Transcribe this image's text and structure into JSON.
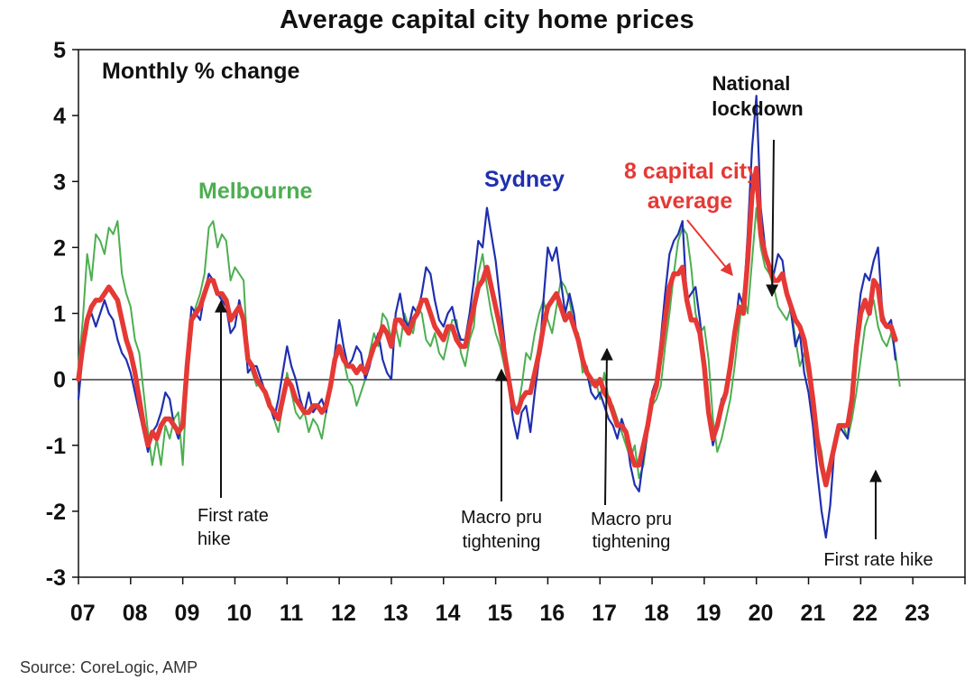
{
  "chart_data": {
    "type": "line",
    "title": "Average capital city home prices",
    "subtitle": "Monthly % change",
    "source": "Source: CoreLogic, AMP",
    "x_start_year": 2007,
    "x_tick_labels": [
      "07",
      "08",
      "09",
      "10",
      "11",
      "12",
      "13",
      "14",
      "15",
      "16",
      "17",
      "18",
      "19",
      "20",
      "21",
      "22",
      "23"
    ],
    "y_ticks": [
      "5",
      "4",
      "3",
      "2",
      "1",
      "0",
      "-1",
      "-2",
      "-3"
    ],
    "ylim": [
      -3,
      5
    ],
    "colors": {
      "sydney": "#1f2fb0",
      "melbourne": "#4caf50",
      "average": "#e53935",
      "axis": "#111111"
    },
    "series": [
      {
        "key": "melbourne",
        "name": "Melbourne",
        "values": [
          0.2,
          0.9,
          1.9,
          1.5,
          2.2,
          2.1,
          1.9,
          2.3,
          2.2,
          2.4,
          1.6,
          1.3,
          1.1,
          0.6,
          0.4,
          -0.2,
          -0.8,
          -1.3,
          -0.9,
          -1.3,
          -0.7,
          -0.9,
          -0.6,
          -0.5,
          -1.3,
          0.0,
          0.9,
          1.1,
          1.3,
          1.6,
          2.3,
          2.4,
          2.0,
          2.2,
          2.1,
          1.5,
          1.7,
          1.6,
          1.5,
          0.3,
          0.1,
          -0.1,
          0.0,
          -0.2,
          -0.3,
          -0.6,
          -0.8,
          -0.4,
          0.1,
          -0.2,
          -0.5,
          -0.6,
          -0.5,
          -0.8,
          -0.6,
          -0.7,
          -0.9,
          -0.5,
          -0.1,
          0.2,
          0.5,
          0.3,
          0.0,
          -0.1,
          -0.4,
          -0.2,
          0.0,
          0.4,
          0.7,
          0.5,
          1.0,
          0.9,
          0.6,
          0.8,
          0.5,
          1.0,
          0.8,
          0.7,
          1.1,
          1.0,
          0.6,
          0.5,
          0.7,
          0.4,
          0.3,
          0.6,
          0.9,
          0.9,
          0.4,
          0.2,
          0.6,
          0.8,
          1.6,
          1.9,
          1.4,
          1.0,
          0.7,
          0.5,
          0.2,
          -0.1,
          -0.3,
          -0.5,
          -0.1,
          0.4,
          0.3,
          0.7,
          1.0,
          1.2,
          0.9,
          0.7,
          1.1,
          1.5,
          1.4,
          1.2,
          0.8,
          0.7,
          0.1,
          0.2,
          -0.1,
          0.0,
          -0.3,
          0.1,
          -0.3,
          -0.4,
          -0.6,
          -0.8,
          -1.0,
          -1.2,
          -1.0,
          -1.5,
          -1.3,
          -0.8,
          -0.4,
          -0.3,
          -0.1,
          0.5,
          1.0,
          1.6,
          2.1,
          2.3,
          2.2,
          1.7,
          1.0,
          0.7,
          0.8,
          0.3,
          -0.6,
          -1.1,
          -0.9,
          -0.6,
          -0.3,
          0.2,
          0.8,
          1.3,
          1.0,
          1.8,
          2.6,
          2.0,
          1.7,
          1.6,
          1.4,
          1.1,
          1.0,
          0.9,
          1.1,
          0.6,
          0.2,
          0.4,
          0.0,
          -0.4,
          -0.8,
          -1.1,
          -1.6,
          -1.2,
          -1.0,
          -0.8,
          -0.7,
          -0.9,
          -0.6,
          -0.2,
          0.3,
          0.8,
          1.0,
          1.2,
          0.8,
          0.6,
          0.5,
          0.7,
          0.4,
          -0.1
        ]
      },
      {
        "key": "sydney",
        "name": "Sydney",
        "values": [
          -0.3,
          0.4,
          0.9,
          1.0,
          0.8,
          1.0,
          1.2,
          1.0,
          0.9,
          0.6,
          0.4,
          0.3,
          0.1,
          -0.2,
          -0.5,
          -0.8,
          -1.1,
          -0.8,
          -0.7,
          -0.5,
          -0.2,
          -0.3,
          -0.7,
          -0.9,
          -0.6,
          0.2,
          1.1,
          1.0,
          0.9,
          1.3,
          1.6,
          1.5,
          1.3,
          1.2,
          1.1,
          0.7,
          0.8,
          1.2,
          0.9,
          0.1,
          0.2,
          0.2,
          0.0,
          -0.2,
          -0.4,
          -0.6,
          -0.3,
          0.1,
          0.5,
          0.2,
          0.0,
          -0.3,
          -0.5,
          -0.2,
          -0.5,
          -0.4,
          -0.3,
          -0.5,
          -0.1,
          0.4,
          0.9,
          0.5,
          0.2,
          0.3,
          0.5,
          0.4,
          0.0,
          0.2,
          0.5,
          0.7,
          0.3,
          0.1,
          0.0,
          1.0,
          1.3,
          0.9,
          0.8,
          1.1,
          1.0,
          1.3,
          1.7,
          1.6,
          1.2,
          0.9,
          0.8,
          1.0,
          1.1,
          0.8,
          0.6,
          0.6,
          1.0,
          1.5,
          2.1,
          2.0,
          2.6,
          2.2,
          1.8,
          1.2,
          0.6,
          -0.1,
          -0.6,
          -0.9,
          -0.5,
          -0.4,
          -0.8,
          -0.2,
          0.3,
          1.2,
          2.0,
          1.8,
          2.0,
          1.5,
          1.0,
          1.3,
          1.0,
          0.5,
          0.3,
          0.1,
          -0.2,
          -0.3,
          -0.2,
          -0.4,
          -0.6,
          -0.7,
          -0.9,
          -0.6,
          -0.8,
          -1.3,
          -1.6,
          -1.7,
          -1.2,
          -0.8,
          -0.2,
          0.0,
          0.6,
          1.3,
          1.9,
          2.1,
          2.2,
          2.4,
          1.2,
          1.3,
          1.4,
          0.9,
          0.3,
          -0.6,
          -1.0,
          -0.7,
          -0.3,
          -0.2,
          0.3,
          0.7,
          1.3,
          1.1,
          2.2,
          3.5,
          4.3,
          2.6,
          2.0,
          1.7,
          1.6,
          1.9,
          1.8,
          1.3,
          1.0,
          0.5,
          0.7,
          0.1,
          -0.2,
          -0.7,
          -1.4,
          -2.0,
          -2.4,
          -1.9,
          -1.0,
          -0.7,
          -0.8,
          -0.9,
          -0.2,
          0.7,
          1.3,
          1.6,
          1.5,
          1.8,
          2.0,
          1.0,
          0.8,
          0.9,
          0.3
        ]
      },
      {
        "key": "average",
        "name": "8 capital city average",
        "values": [
          0.0,
          0.5,
          0.9,
          1.1,
          1.2,
          1.2,
          1.3,
          1.4,
          1.3,
          1.2,
          0.9,
          0.6,
          0.4,
          0.1,
          -0.3,
          -0.7,
          -1.0,
          -0.8,
          -0.9,
          -0.7,
          -0.6,
          -0.6,
          -0.7,
          -0.8,
          -0.7,
          0.2,
          0.9,
          1.0,
          1.1,
          1.3,
          1.5,
          1.5,
          1.3,
          1.3,
          1.2,
          0.9,
          1.0,
          1.1,
          0.9,
          0.3,
          0.2,
          0.0,
          -0.1,
          -0.2,
          -0.4,
          -0.5,
          -0.6,
          -0.3,
          0.0,
          -0.1,
          -0.3,
          -0.4,
          -0.5,
          -0.5,
          -0.4,
          -0.4,
          -0.5,
          -0.4,
          -0.1,
          0.3,
          0.5,
          0.3,
          0.2,
          0.2,
          0.1,
          0.2,
          0.1,
          0.3,
          0.5,
          0.6,
          0.8,
          0.7,
          0.5,
          0.9,
          0.9,
          0.8,
          0.7,
          0.9,
          1.0,
          1.2,
          1.2,
          1.0,
          0.8,
          0.7,
          0.6,
          0.8,
          0.8,
          0.6,
          0.5,
          0.5,
          0.8,
          1.1,
          1.4,
          1.5,
          1.7,
          1.4,
          1.1,
          0.8,
          0.4,
          0.0,
          -0.4,
          -0.5,
          -0.3,
          -0.2,
          -0.2,
          0.1,
          0.4,
          0.8,
          1.1,
          1.2,
          1.3,
          1.1,
          0.9,
          1.0,
          0.8,
          0.6,
          0.3,
          0.1,
          0.0,
          -0.1,
          0.0,
          -0.2,
          -0.3,
          -0.5,
          -0.7,
          -0.7,
          -0.8,
          -1.1,
          -1.3,
          -1.3,
          -1.0,
          -0.7,
          -0.3,
          -0.1,
          0.4,
          0.9,
          1.4,
          1.6,
          1.6,
          1.7,
          1.2,
          0.9,
          0.9,
          0.7,
          0.2,
          -0.5,
          -0.9,
          -0.7,
          -0.4,
          -0.2,
          0.2,
          0.7,
          1.1,
          1.0,
          1.8,
          2.8,
          3.2,
          2.2,
          1.9,
          1.7,
          1.5,
          1.5,
          1.6,
          1.3,
          1.1,
          0.9,
          0.8,
          0.6,
          0.2,
          -0.3,
          -0.9,
          -1.3,
          -1.6,
          -1.3,
          -1.0,
          -0.7,
          -0.7,
          -0.7,
          -0.3,
          0.5,
          1.0,
          1.2,
          1.0,
          1.5,
          1.4,
          0.9,
          0.8,
          0.8,
          0.6
        ]
      }
    ],
    "labels": {
      "melbourne": "Melbourne",
      "sydney": "Sydney",
      "average_line1": "8 capital city",
      "average_line2": "average",
      "national_line1": "National",
      "national_line2": "lockdown"
    },
    "annotations": [
      {
        "line1": "First rate",
        "line2": "hike"
      },
      {
        "line1": "Macro pru",
        "line2": "tightening"
      },
      {
        "line1": "Macro pru",
        "line2": "tightening"
      },
      {
        "line1": "First rate hike",
        "line2": ""
      }
    ]
  }
}
